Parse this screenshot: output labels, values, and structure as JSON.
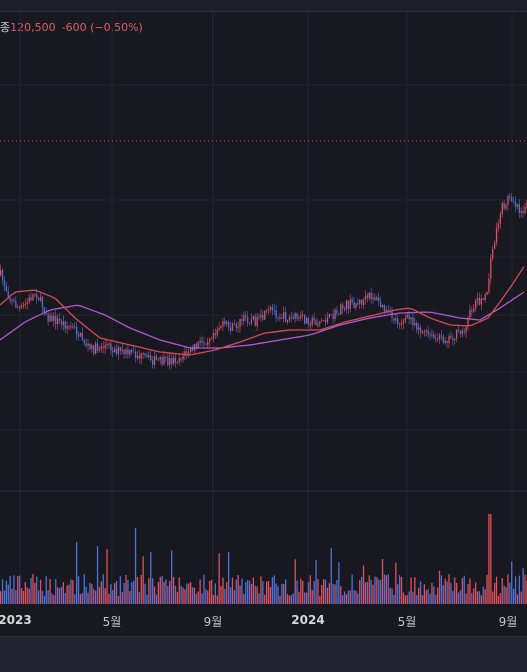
{
  "legend": {
    "label": "종",
    "close": "120,500",
    "change": "-600 (−0.50%)"
  },
  "x_axis_labels": [
    "2023",
    "5월",
    "9월",
    "2024",
    "5월",
    "9월"
  ],
  "colors": {
    "background": "#171820",
    "up": "#e2505c",
    "down": "#4f73d9",
    "ma_short": "#d84a55",
    "ma_long": "#b25ad0",
    "price_line": "#e2505c",
    "grid": "#23252e"
  }
}
